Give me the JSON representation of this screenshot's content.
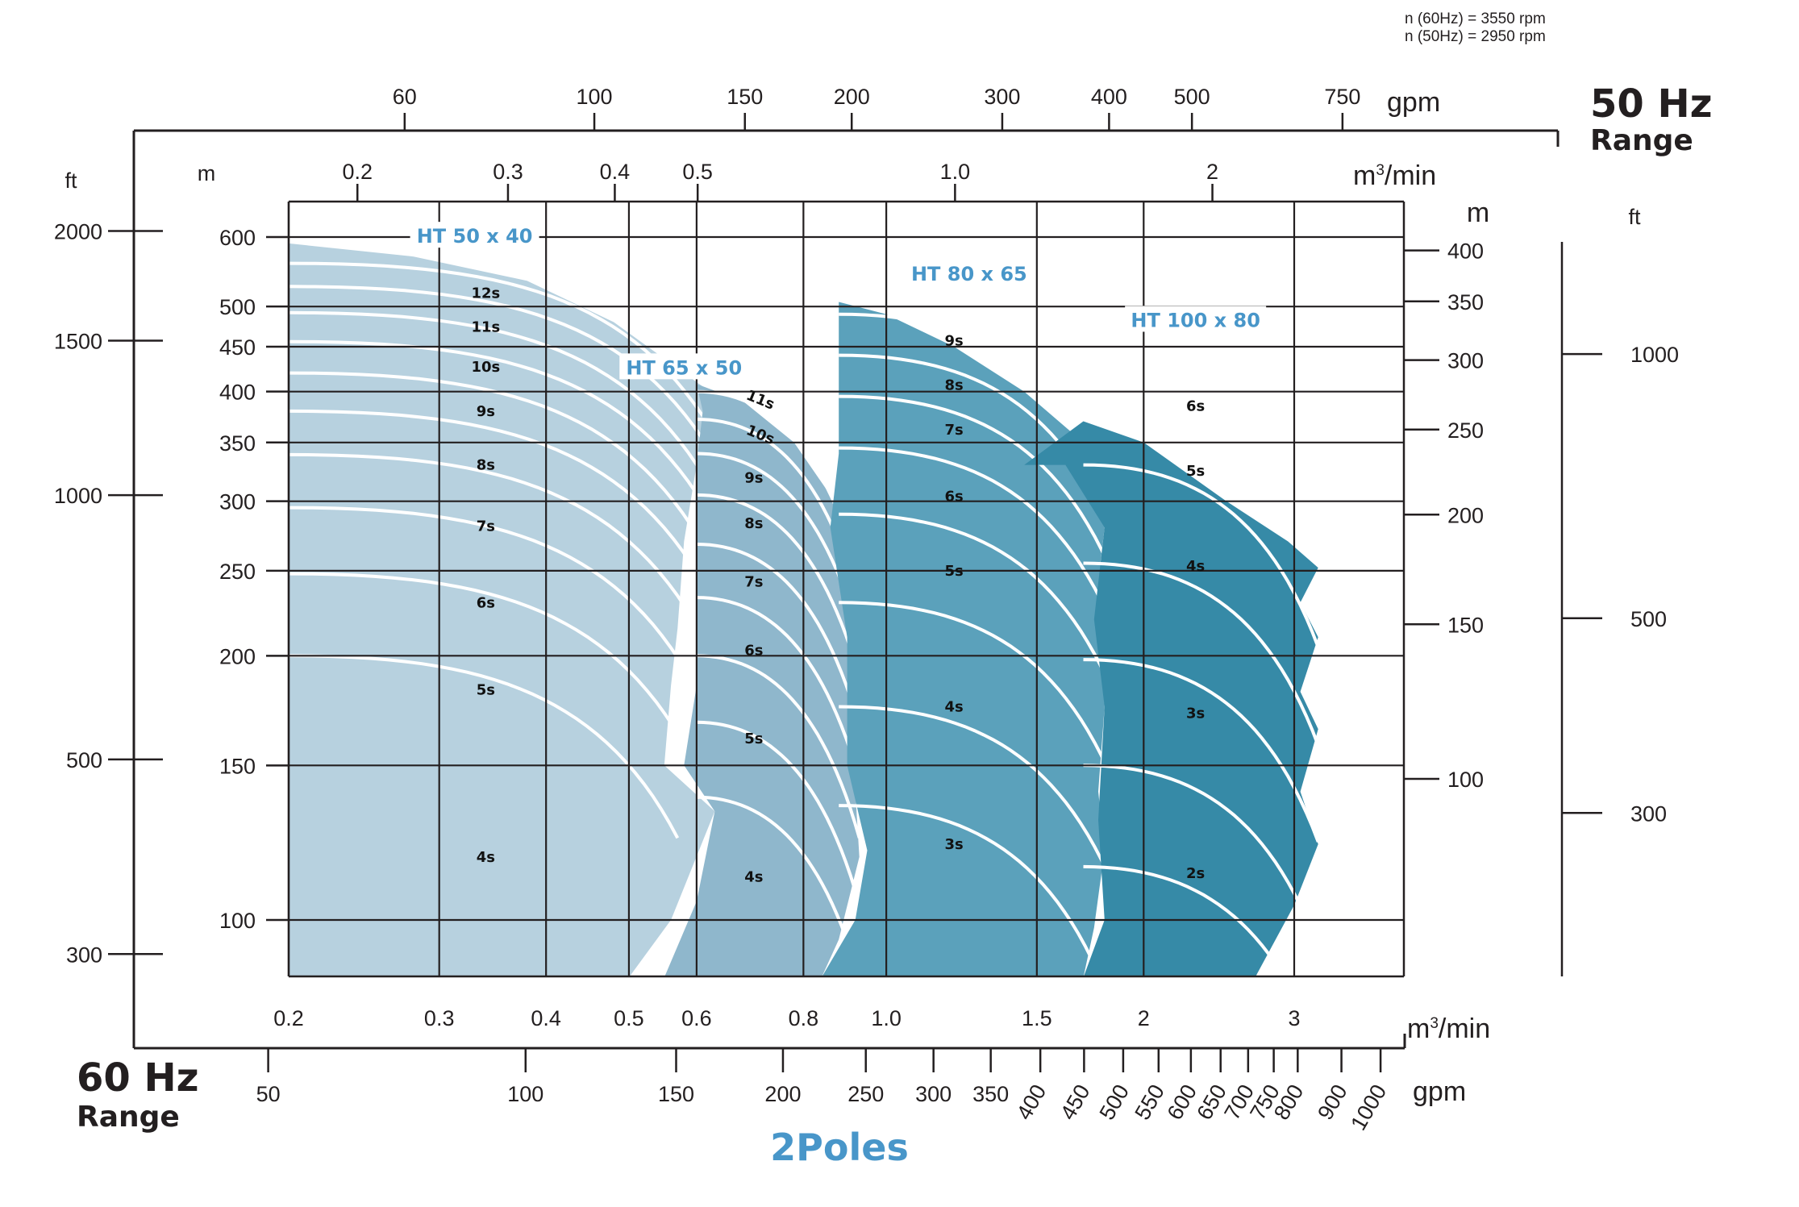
{
  "chart_data": {
    "type": "area",
    "notes": [
      "n (60Hz) = 3550 rpm",
      "n (50Hz) = 2950 rpm"
    ],
    "range_60hz": {
      "line1": "60 Hz",
      "line2": "Range"
    },
    "range_50hz": {
      "line1": "50 Hz",
      "line2": "Range"
    },
    "footer": "2Poles",
    "x_axis_60hz_m3min": {
      "unit_line1": "m",
      "unit_sup": "3",
      "unit_line2": "/min",
      "scale": "log",
      "ticks": [
        {
          "v": 0.2,
          "label": "0.2"
        },
        {
          "v": 0.3,
          "label": "0.3"
        },
        {
          "v": 0.4,
          "label": "0.4"
        },
        {
          "v": 0.5,
          "label": "0.5"
        },
        {
          "v": 0.6,
          "label": "0.6"
        },
        {
          "v": 0.8,
          "label": "0.8"
        },
        {
          "v": 1.0,
          "label": "1.0"
        },
        {
          "v": 1.5,
          "label": "1.5"
        },
        {
          "v": 2,
          "label": "2"
        },
        {
          "v": 3,
          "label": "3"
        }
      ]
    },
    "x_axis_60hz_gpm": {
      "unit": "gpm",
      "ticks": [
        {
          "v": 50,
          "label": "50"
        },
        {
          "v": 100,
          "label": "100"
        },
        {
          "v": 150,
          "label": "150"
        },
        {
          "v": 200,
          "label": "200"
        },
        {
          "v": 250,
          "label": "250"
        },
        {
          "v": 300,
          "label": "300"
        },
        {
          "v": 350,
          "label": "350"
        },
        {
          "v": 400,
          "label": "400"
        },
        {
          "v": 450,
          "label": "450"
        },
        {
          "v": 500,
          "label": "500"
        },
        {
          "v": 550,
          "label": "550"
        },
        {
          "v": 600,
          "label": "600"
        },
        {
          "v": 650,
          "label": "650"
        },
        {
          "v": 700,
          "label": "700"
        },
        {
          "v": 750,
          "label": "750"
        },
        {
          "v": 800,
          "label": "800"
        },
        {
          "v": 900,
          "label": "900"
        },
        {
          "v": 1000,
          "label": "1000"
        }
      ]
    },
    "x_axis_50hz_m3min": {
      "unit_line1": "m",
      "unit_sup": "3",
      "unit_line2": "/min",
      "ticks": [
        {
          "v": 0.2,
          "label": "0.2"
        },
        {
          "v": 0.3,
          "label": "0.3"
        },
        {
          "v": 0.4,
          "label": "0.4"
        },
        {
          "v": 0.5,
          "label": "0.5"
        },
        {
          "v": 1.0,
          "label": "1.0"
        },
        {
          "v": 2,
          "label": "2"
        }
      ]
    },
    "x_axis_50hz_gpm": {
      "unit": "gpm",
      "ticks": [
        {
          "v": 60,
          "label": "60"
        },
        {
          "v": 100,
          "label": "100"
        },
        {
          "v": 150,
          "label": "150"
        },
        {
          "v": 200,
          "label": "200"
        },
        {
          "v": 300,
          "label": "300"
        },
        {
          "v": 400,
          "label": "400"
        },
        {
          "v": 500,
          "label": "500"
        },
        {
          "v": 750,
          "label": "750"
        }
      ]
    },
    "y_axis_60hz_m": {
      "unit": "m",
      "scale": "log",
      "range": [
        86,
        640
      ],
      "ticks": [
        {
          "v": 100,
          "label": "100"
        },
        {
          "v": 150,
          "label": "150"
        },
        {
          "v": 200,
          "label": "200"
        },
        {
          "v": 250,
          "label": "250"
        },
        {
          "v": 300,
          "label": "300"
        },
        {
          "v": 350,
          "label": "350"
        },
        {
          "v": 400,
          "label": "400"
        },
        {
          "v": 450,
          "label": "450"
        },
        {
          "v": 500,
          "label": "500"
        },
        {
          "v": 600,
          "label": "600"
        }
      ]
    },
    "y_axis_60hz_ft": {
      "unit": "ft",
      "ticks": [
        {
          "v": 300,
          "label": "300"
        },
        {
          "v": 500,
          "label": "500"
        },
        {
          "v": 1000,
          "label": "1000"
        },
        {
          "v": 1500,
          "label": "1500"
        },
        {
          "v": 2000,
          "label": "2000"
        }
      ]
    },
    "y_axis_50hz_m": {
      "unit": "m",
      "ticks": [
        {
          "v": 100,
          "label": "100"
        },
        {
          "v": 150,
          "label": "150"
        },
        {
          "v": 200,
          "label": "200"
        },
        {
          "v": 250,
          "label": "250"
        },
        {
          "v": 300,
          "label": "300"
        },
        {
          "v": 350,
          "label": "350"
        },
        {
          "v": 400,
          "label": "400"
        }
      ]
    },
    "y_axis_50hz_ft": {
      "unit": "ft",
      "ticks": [
        {
          "v": 300,
          "label": "300"
        },
        {
          "v": 500,
          "label": "500"
        },
        {
          "v": 1000,
          "label": "1000"
        }
      ]
    },
    "models": [
      {
        "name": "HT 50 x 40",
        "color": "#b7d1df",
        "stages": [
          {
            "label": "4s",
            "q": 0.34,
            "h": 118
          },
          {
            "label": "5s",
            "q": 0.34,
            "h": 183
          },
          {
            "label": "6s",
            "q": 0.34,
            "h": 230
          },
          {
            "label": "7s",
            "q": 0.34,
            "h": 281
          },
          {
            "label": "8s",
            "q": 0.34,
            "h": 330
          },
          {
            "label": "9s",
            "q": 0.34,
            "h": 380
          },
          {
            "label": "10s",
            "q": 0.34,
            "h": 427
          },
          {
            "label": "11s",
            "q": 0.34,
            "h": 474
          },
          {
            "label": "12s",
            "q": 0.34,
            "h": 518
          }
        ]
      },
      {
        "name": "HT 65 x 50",
        "color": "#8fb7cc",
        "stages": [
          {
            "label": "4s",
            "q": 0.7,
            "h": 112
          },
          {
            "label": "5s",
            "q": 0.7,
            "h": 161
          },
          {
            "label": "6s",
            "q": 0.7,
            "h": 203
          },
          {
            "label": "7s",
            "q": 0.7,
            "h": 243
          },
          {
            "label": "8s",
            "q": 0.7,
            "h": 283
          },
          {
            "label": "9s",
            "q": 0.7,
            "h": 319
          },
          {
            "label": "10s",
            "q": 0.7,
            "h": 353
          },
          {
            "label": "11s",
            "q": 0.7,
            "h": 387
          }
        ]
      },
      {
        "name": "HT 80 x 65",
        "color": "#5ba1bb",
        "stages": [
          {
            "label": "3s",
            "q": 1.2,
            "h": 122
          },
          {
            "label": "4s",
            "q": 1.2,
            "h": 175
          },
          {
            "label": "5s",
            "q": 1.2,
            "h": 250
          },
          {
            "label": "6s",
            "q": 1.2,
            "h": 304
          },
          {
            "label": "7s",
            "q": 1.2,
            "h": 362
          },
          {
            "label": "8s",
            "q": 1.2,
            "h": 407
          },
          {
            "label": "9s",
            "q": 1.2,
            "h": 457
          }
        ]
      },
      {
        "name": "HT 100 x 80",
        "color": "#368aa7",
        "stages": [
          {
            "label": "2s",
            "q": 2.3,
            "h": 113
          },
          {
            "label": "3s",
            "q": 2.3,
            "h": 172
          },
          {
            "label": "4s",
            "q": 2.3,
            "h": 253
          },
          {
            "label": "5s",
            "q": 2.3,
            "h": 325
          },
          {
            "label": "6s",
            "q": 2.3,
            "h": 385
          }
        ]
      }
    ]
  }
}
